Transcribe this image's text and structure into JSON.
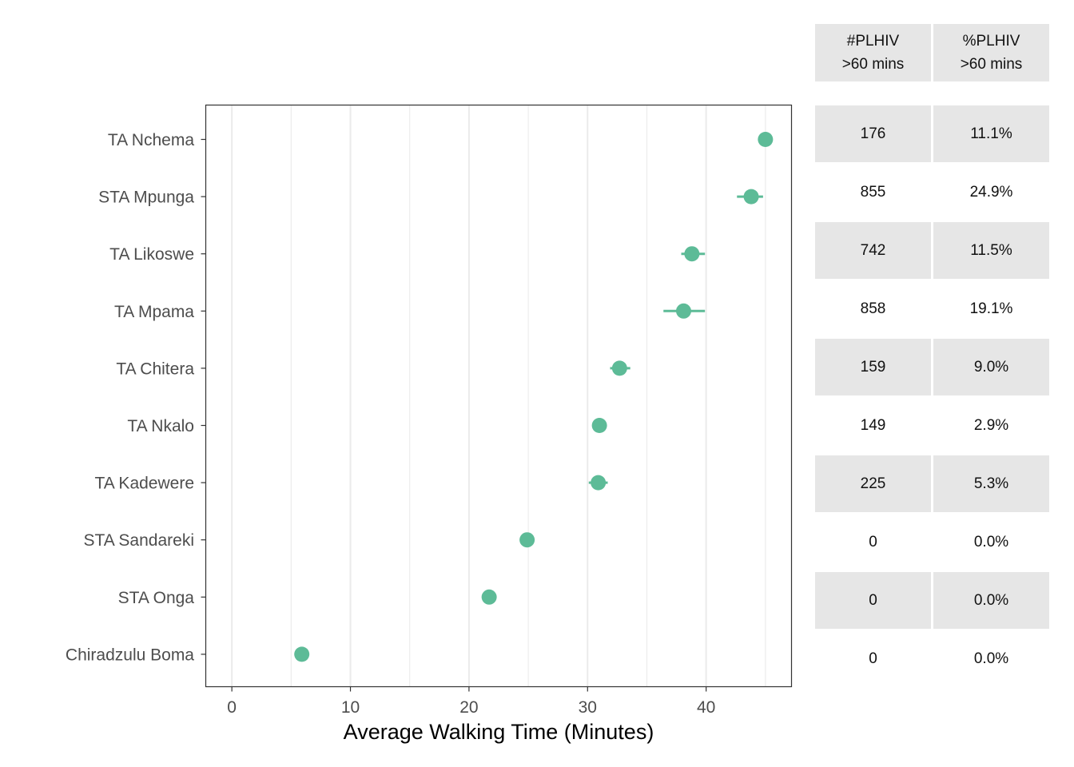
{
  "chart_data": {
    "type": "scatter",
    "xlabel": "Average Walking Time (Minutes)",
    "ylabel": "",
    "xlim": [
      -2.2,
      47.2
    ],
    "x_ticks": [
      0,
      10,
      20,
      30,
      40
    ],
    "grid": true,
    "point_color": "#5dbb97",
    "categories": [
      "TA Nchema",
      "STA Mpunga",
      "TA Likoswe",
      "TA Mpama",
      "TA Chitera",
      "TA Nkalo",
      "TA Kadewere",
      "STA Sandareki",
      "STA Onga",
      "Chiradzulu Boma"
    ],
    "values": [
      45.0,
      43.8,
      38.8,
      38.1,
      32.7,
      31.0,
      30.9,
      24.9,
      21.7,
      5.9
    ],
    "error_low": [
      45.0,
      42.6,
      37.9,
      36.4,
      31.9,
      31.0,
      30.1,
      24.9,
      21.7,
      5.9
    ],
    "error_high": [
      45.0,
      44.8,
      39.9,
      39.9,
      33.6,
      31.0,
      31.7,
      24.9,
      21.7,
      5.9
    ]
  },
  "table": {
    "headers": [
      {
        "line1": "#PLHIV",
        "line2": ">60 mins"
      },
      {
        "line1": "%PLHIV",
        "line2": ">60 mins"
      }
    ],
    "rows": [
      {
        "count": "176",
        "pct": "11.1%"
      },
      {
        "count": "855",
        "pct": "24.9%"
      },
      {
        "count": "742",
        "pct": "11.5%"
      },
      {
        "count": "858",
        "pct": "19.1%"
      },
      {
        "count": "159",
        "pct": "9.0%"
      },
      {
        "count": "149",
        "pct": "2.9%"
      },
      {
        "count": "225",
        "pct": "5.3%"
      },
      {
        "count": "0",
        "pct": "0.0%"
      },
      {
        "count": "0",
        "pct": "0.0%"
      },
      {
        "count": "0",
        "pct": "0.0%"
      }
    ]
  }
}
